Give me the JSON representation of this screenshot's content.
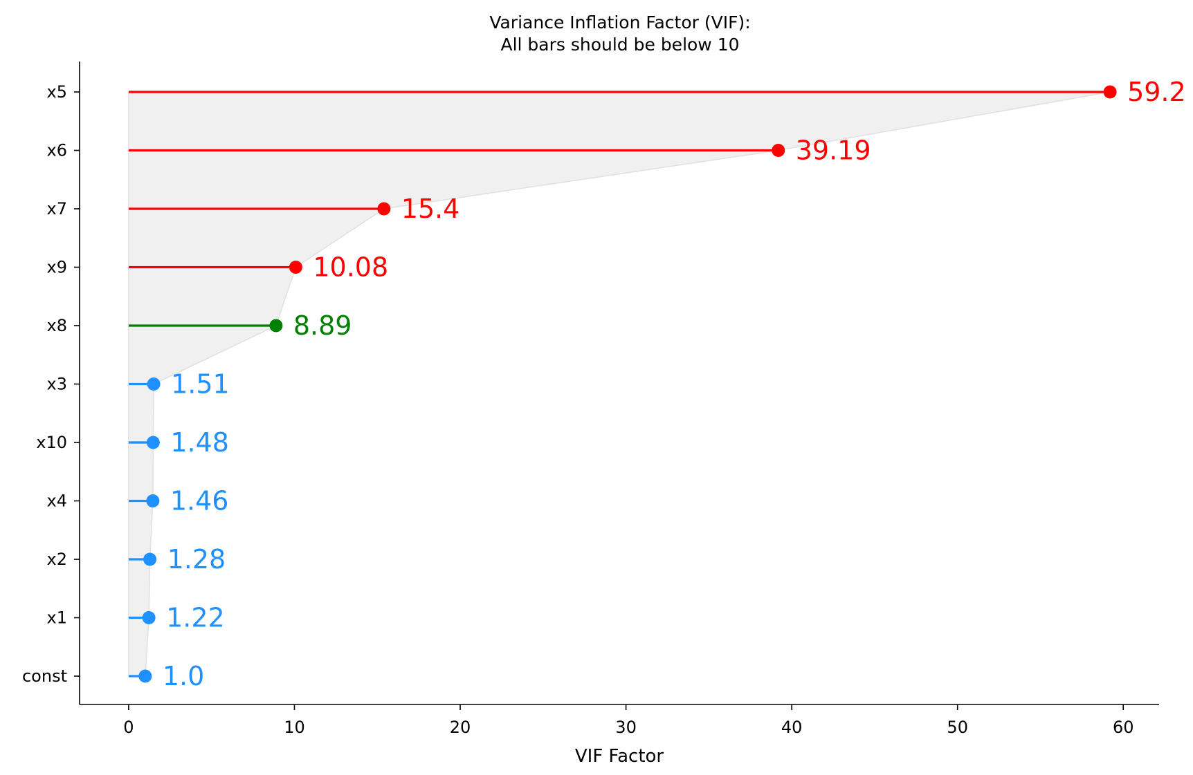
{
  "chart_data": {
    "type": "lollipop",
    "orientation": "horizontal",
    "title_line1": "Variance Inflation Factor (VIF):",
    "title_line2": "All bars should be below 10",
    "xlabel": "VIF Factor",
    "ylabel": "",
    "xlim": [
      -2.96,
      62.16
    ],
    "xticks": [
      0,
      10,
      20,
      30,
      40,
      50,
      60
    ],
    "grid": false,
    "threshold": 10,
    "colors": {
      "above_threshold": "#ff0000",
      "near_threshold": "#008000",
      "low": "#1e90ff",
      "fill": "#f0f0f0",
      "fill_edge": "#e0e0e0"
    },
    "categories": [
      "x5",
      "x6",
      "x7",
      "x9",
      "x8",
      "x3",
      "x10",
      "x4",
      "x2",
      "x1",
      "const"
    ],
    "values": [
      59.2,
      39.19,
      15.4,
      10.08,
      8.89,
      1.51,
      1.48,
      1.46,
      1.28,
      1.22,
      1.0
    ],
    "value_labels": [
      "59.2",
      "39.19",
      "15.4",
      "10.08",
      "8.89",
      "1.51",
      "1.48",
      "1.46",
      "1.28",
      "1.22",
      "1.0"
    ],
    "point_colors": [
      "above_threshold",
      "above_threshold",
      "above_threshold",
      "above_threshold",
      "near_threshold",
      "low",
      "low",
      "low",
      "low",
      "low",
      "low"
    ]
  }
}
